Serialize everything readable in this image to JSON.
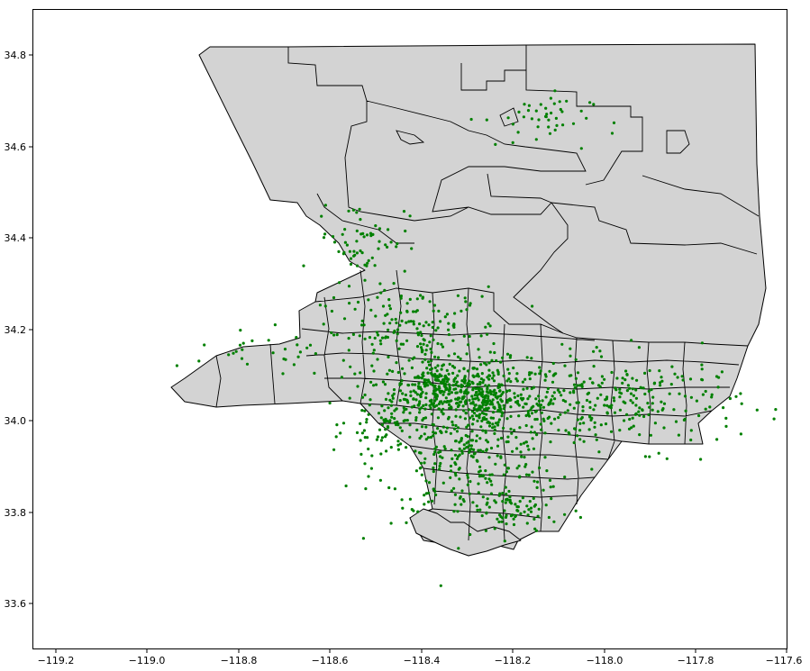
{
  "chart_data": {
    "type": "map",
    "xlim": [
      -119.25,
      -117.6
    ],
    "ylim": [
      33.5,
      34.9
    ],
    "x_ticks": [
      -119.2,
      -119.0,
      -118.8,
      -118.6,
      -118.4,
      -118.2,
      -118.0,
      -117.8,
      -117.6
    ],
    "x_tick_labels": [
      "−119.2",
      "−119.0",
      "−118.8",
      "−118.6",
      "−118.4",
      "−118.2",
      "−118.0",
      "−117.8",
      "−117.6"
    ],
    "y_ticks": [
      33.6,
      33.8,
      34.0,
      34.2,
      34.4,
      34.6,
      34.8
    ],
    "y_tick_labels": [
      "33.6",
      "33.8",
      "34.0",
      "34.2",
      "34.4",
      "34.6",
      "34.8"
    ],
    "grid": false,
    "colors": {
      "region_fill": "#d3d3d3",
      "region_edge": "#000000",
      "points": "#008000"
    },
    "point_clusters": [
      {
        "lon": -118.36,
        "lat": 34.07,
        "sd_lon": 0.05,
        "sd_lat": 0.03,
        "count": 260
      },
      {
        "lon": -118.26,
        "lat": 34.04,
        "sd_lon": 0.03,
        "sd_lat": 0.03,
        "count": 140
      },
      {
        "lon": -118.3,
        "lat": 33.92,
        "sd_lon": 0.1,
        "sd_lat": 0.07,
        "count": 300
      },
      {
        "lon": -118.15,
        "lat": 34.05,
        "sd_lon": 0.09,
        "sd_lat": 0.05,
        "count": 220
      },
      {
        "lon": -118.42,
        "lat": 34.19,
        "sd_lon": 0.1,
        "sd_lat": 0.05,
        "count": 200
      },
      {
        "lon": -117.9,
        "lat": 34.04,
        "sd_lon": 0.1,
        "sd_lat": 0.05,
        "count": 160
      },
      {
        "lon": -118.2,
        "lat": 33.8,
        "sd_lon": 0.05,
        "sd_lat": 0.03,
        "count": 70
      },
      {
        "lon": -118.48,
        "lat": 34.0,
        "sd_lon": 0.04,
        "sd_lat": 0.03,
        "count": 70
      },
      {
        "lon": -118.53,
        "lat": 34.4,
        "sd_lon": 0.05,
        "sd_lat": 0.04,
        "count": 60
      },
      {
        "lon": -118.15,
        "lat": 34.66,
        "sd_lon": 0.06,
        "sd_lat": 0.03,
        "count": 45
      },
      {
        "lon": -118.78,
        "lat": 34.14,
        "sd_lon": 0.08,
        "sd_lat": 0.02,
        "count": 25
      }
    ]
  }
}
